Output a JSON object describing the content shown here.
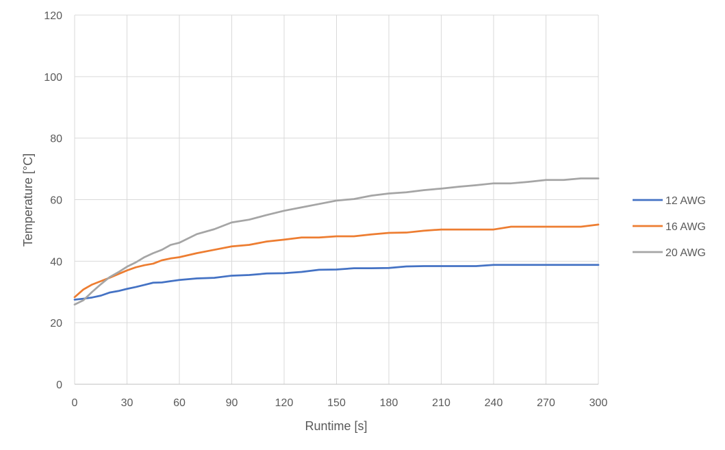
{
  "chart_data": {
    "type": "line",
    "xlabel": "Runtime [s]",
    "ylabel": "Temperature [°C]",
    "xlim": [
      0,
      300
    ],
    "ylim": [
      0,
      120
    ],
    "x_ticks": [
      0,
      30,
      60,
      90,
      120,
      150,
      180,
      210,
      240,
      270,
      300
    ],
    "y_ticks": [
      0,
      20,
      40,
      60,
      80,
      100,
      120
    ],
    "grid": true,
    "legend_position": "right",
    "series": [
      {
        "name": "12 AWG",
        "color": "#4472C4",
        "x": [
          0,
          5,
          10,
          15,
          20,
          25,
          30,
          35,
          40,
          45,
          50,
          55,
          60,
          70,
          80,
          90,
          100,
          110,
          120,
          130,
          140,
          150,
          160,
          170,
          180,
          190,
          200,
          210,
          220,
          230,
          240,
          250,
          260,
          270,
          280,
          290,
          300
        ],
        "y": [
          27.5,
          27.8,
          28.2,
          28.8,
          29.8,
          30.3,
          31.0,
          31.6,
          32.3,
          33.0,
          33.1,
          33.5,
          33.9,
          34.4,
          34.6,
          35.3,
          35.5,
          36.0,
          36.1,
          36.5,
          37.2,
          37.3,
          37.7,
          37.7,
          37.8,
          38.3,
          38.4,
          38.4,
          38.4,
          38.4,
          38.8,
          38.8,
          38.8,
          38.8,
          38.8,
          38.8,
          38.8
        ]
      },
      {
        "name": "16 AWG",
        "color": "#ED7D31",
        "x": [
          0,
          5,
          10,
          15,
          20,
          25,
          30,
          35,
          40,
          45,
          50,
          55,
          60,
          70,
          80,
          90,
          100,
          110,
          120,
          130,
          140,
          150,
          160,
          170,
          180,
          190,
          200,
          210,
          220,
          230,
          240,
          250,
          260,
          270,
          280,
          290,
          300
        ],
        "y": [
          28.3,
          30.8,
          32.4,
          33.5,
          34.6,
          35.8,
          37.0,
          38.0,
          38.7,
          39.2,
          40.3,
          40.9,
          41.3,
          42.6,
          43.7,
          44.8,
          45.3,
          46.4,
          47.0,
          47.7,
          47.7,
          48.1,
          48.1,
          48.7,
          49.2,
          49.3,
          49.9,
          50.3,
          50.3,
          50.3,
          50.3,
          51.2,
          51.2,
          51.2,
          51.2,
          51.2,
          51.9
        ]
      },
      {
        "name": "20 AWG",
        "color": "#A5A5A5",
        "x": [
          0,
          5,
          10,
          15,
          20,
          25,
          30,
          35,
          40,
          45,
          50,
          55,
          60,
          70,
          80,
          90,
          100,
          110,
          120,
          130,
          140,
          150,
          160,
          170,
          180,
          190,
          200,
          210,
          220,
          230,
          240,
          250,
          260,
          270,
          280,
          290,
          300
        ],
        "y": [
          25.9,
          27.3,
          30.0,
          32.5,
          34.8,
          36.4,
          38.2,
          39.6,
          41.3,
          42.6,
          43.7,
          45.3,
          46.0,
          48.8,
          50.4,
          52.6,
          53.5,
          55.0,
          56.4,
          57.5,
          58.6,
          59.7,
          60.2,
          61.3,
          62.0,
          62.4,
          63.1,
          63.6,
          64.2,
          64.7,
          65.3,
          65.3,
          65.8,
          66.4,
          66.4,
          66.9,
          66.9
        ]
      }
    ]
  }
}
